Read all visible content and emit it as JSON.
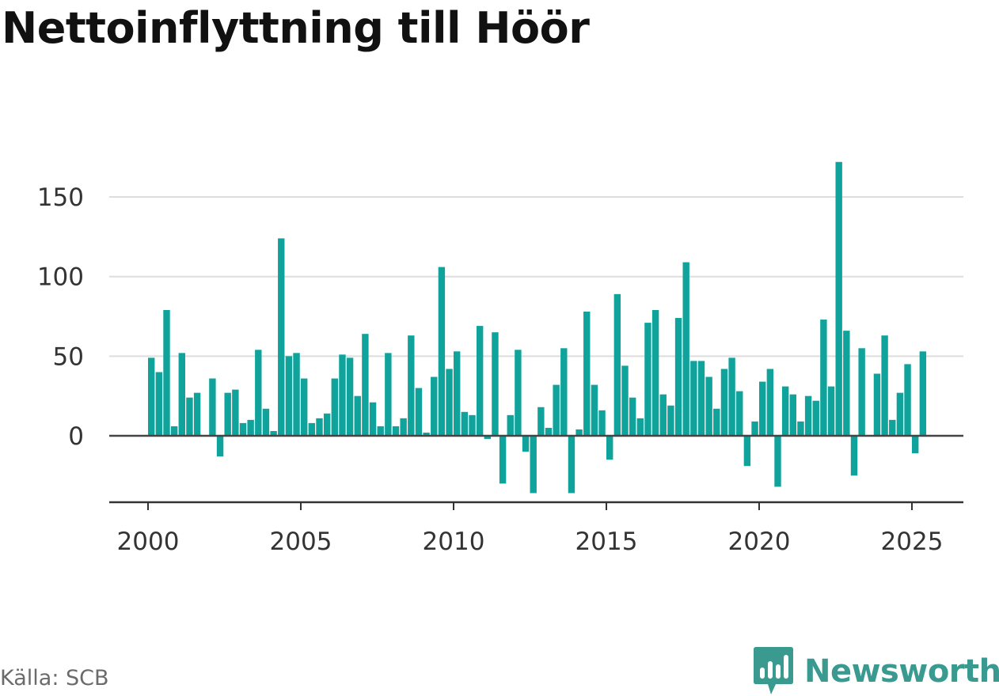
{
  "title": "Nettoinflyttning till Höör",
  "source": "Källa: SCB",
  "brand": {
    "name": "Newsworthy",
    "icon": "newsworthy-logo-icon",
    "color": "#3a9a8f"
  },
  "colors": {
    "bar": "#0fa39b",
    "zero_line": "#444444",
    "grid": "#dddddd",
    "axis": "#333333"
  },
  "chart_data": {
    "type": "bar",
    "title": "Nettoinflyttning till Höör",
    "xlabel": "",
    "ylabel": "",
    "grid": true,
    "legend": "none",
    "ylim": [
      -42,
      172
    ],
    "xlim": [
      2000,
      2025.75
    ],
    "yticks": [
      0,
      50,
      100,
      150
    ],
    "xticks": [
      2000,
      2005,
      2010,
      2015,
      2020,
      2025
    ],
    "period": "quarter",
    "x": [
      2000.0,
      2000.25,
      2000.5,
      2000.75,
      2001.0,
      2001.25,
      2001.5,
      2001.75,
      2002.0,
      2002.25,
      2002.5,
      2002.75,
      2003.0,
      2003.25,
      2003.5,
      2003.75,
      2004.0,
      2004.25,
      2004.5,
      2004.75,
      2005.0,
      2005.25,
      2005.5,
      2005.75,
      2006.0,
      2006.25,
      2006.5,
      2006.75,
      2007.0,
      2007.25,
      2007.5,
      2007.75,
      2008.0,
      2008.25,
      2008.5,
      2008.75,
      2009.0,
      2009.25,
      2009.5,
      2009.75,
      2010.0,
      2010.25,
      2010.5,
      2010.75,
      2011.0,
      2011.25,
      2011.5,
      2011.75,
      2012.0,
      2012.25,
      2012.5,
      2012.75,
      2013.0,
      2013.25,
      2013.5,
      2013.75,
      2014.0,
      2014.25,
      2014.5,
      2014.75,
      2015.0,
      2015.25,
      2015.5,
      2015.75,
      2016.0,
      2016.25,
      2016.5,
      2016.75,
      2017.0,
      2017.25,
      2017.5,
      2017.75,
      2018.0,
      2018.25,
      2018.5,
      2018.75,
      2019.0,
      2019.25,
      2019.5,
      2019.75,
      2020.0,
      2020.25,
      2020.5,
      2020.75,
      2021.0,
      2021.25,
      2021.5,
      2021.75,
      2022.0,
      2022.25,
      2022.5,
      2022.75,
      2023.0,
      2023.25,
      2023.5,
      2023.75,
      2024.0,
      2024.25,
      2024.5,
      2024.75,
      2025.0,
      2025.25
    ],
    "values": [
      49,
      40,
      79,
      6,
      52,
      24,
      27,
      0,
      36,
      -13,
      27,
      29,
      8,
      10,
      54,
      17,
      3,
      124,
      50,
      52,
      36,
      8,
      11,
      14,
      36,
      51,
      49,
      25,
      64,
      21,
      6,
      52,
      6,
      11,
      63,
      30,
      2,
      37,
      106,
      42,
      53,
      15,
      13,
      69,
      -2,
      65,
      -30,
      13,
      54,
      -10,
      -36,
      18,
      5,
      32,
      55,
      -36,
      4,
      78,
      32,
      16,
      -15,
      89,
      44,
      24,
      11,
      71,
      79,
      26,
      19,
      74,
      109,
      47,
      47,
      37,
      17,
      42,
      49,
      28,
      -19,
      9,
      34,
      42,
      -32,
      31,
      26,
      9,
      25,
      22,
      73,
      31,
      172,
      66,
      -25,
      55,
      0,
      39,
      63,
      10,
      27,
      45,
      -11,
      53
    ]
  }
}
